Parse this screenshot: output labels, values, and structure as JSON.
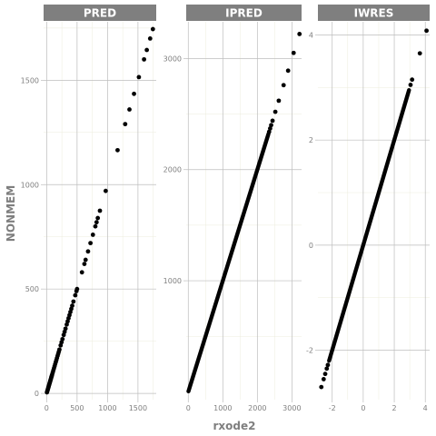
{
  "chart_data": {
    "type": "scatter",
    "xlabel": "rxode2",
    "ylabel": "NONMEM",
    "grid": true,
    "panels": [
      {
        "name": "PRED",
        "xlim": [
          -50,
          1800
        ],
        "ylim": [
          -30,
          1780
        ],
        "x_ticks": [
          0,
          500,
          1000,
          1500
        ],
        "x_tick_labels": [
          "0",
          "500",
          "1000",
          "1500"
        ],
        "y_ticks": [
          0,
          500,
          1000,
          1500
        ],
        "y_tick_labels": [
          "0",
          "500",
          "1000",
          "1500"
        ],
        "points": [
          [
            5,
            5
          ],
          [
            10,
            10
          ],
          [
            15,
            15
          ],
          [
            20,
            20
          ],
          [
            25,
            25
          ],
          [
            30,
            30
          ],
          [
            35,
            35
          ],
          [
            40,
            40
          ],
          [
            45,
            45
          ],
          [
            50,
            50
          ],
          [
            55,
            55
          ],
          [
            60,
            60
          ],
          [
            65,
            65
          ],
          [
            70,
            70
          ],
          [
            75,
            75
          ],
          [
            80,
            80
          ],
          [
            85,
            85
          ],
          [
            90,
            90
          ],
          [
            100,
            100
          ],
          [
            110,
            110
          ],
          [
            120,
            120
          ],
          [
            130,
            130
          ],
          [
            140,
            140
          ],
          [
            150,
            150
          ],
          [
            160,
            160
          ],
          [
            170,
            170
          ],
          [
            180,
            180
          ],
          [
            190,
            190
          ],
          [
            200,
            200
          ],
          [
            210,
            210
          ],
          [
            230,
            230
          ],
          [
            245,
            245
          ],
          [
            260,
            260
          ],
          [
            280,
            280
          ],
          [
            295,
            295
          ],
          [
            310,
            310
          ],
          [
            330,
            330
          ],
          [
            345,
            345
          ],
          [
            360,
            360
          ],
          [
            375,
            375
          ],
          [
            390,
            390
          ],
          [
            405,
            405
          ],
          [
            420,
            420
          ],
          [
            440,
            440
          ],
          [
            470,
            470
          ],
          [
            490,
            490
          ],
          [
            500,
            500
          ],
          [
            580,
            580
          ],
          [
            620,
            620
          ],
          [
            640,
            640
          ],
          [
            680,
            680
          ],
          [
            720,
            720
          ],
          [
            760,
            760
          ],
          [
            800,
            800
          ],
          [
            820,
            820
          ],
          [
            840,
            840
          ],
          [
            875,
            875
          ],
          [
            970,
            970
          ],
          [
            1165,
            1165
          ],
          [
            1290,
            1290
          ],
          [
            1360,
            1360
          ],
          [
            1435,
            1435
          ],
          [
            1515,
            1515
          ],
          [
            1600,
            1600
          ],
          [
            1645,
            1645
          ],
          [
            1700,
            1700
          ],
          [
            1745,
            1745
          ]
        ]
      },
      {
        "name": "IPRED",
        "xlim": [
          -60,
          3280
        ],
        "ylim": [
          -70,
          3330
        ],
        "x_ticks": [
          0,
          1000,
          2000,
          3000
        ],
        "x_tick_labels": [
          "0",
          "1000",
          "2000",
          "3000"
        ],
        "y_ticks": [
          1000,
          2000,
          3000
        ],
        "y_tick_labels": [
          "1000",
          "2000",
          "3000"
        ],
        "dense_segment": [
          5,
          2320
        ],
        "points": [
          [
            2340,
            2340
          ],
          [
            2370,
            2370
          ],
          [
            2400,
            2400
          ],
          [
            2440,
            2440
          ],
          [
            2520,
            2520
          ],
          [
            2620,
            2620
          ],
          [
            2760,
            2760
          ],
          [
            2890,
            2890
          ],
          [
            3050,
            3050
          ],
          [
            3220,
            3220
          ]
        ]
      },
      {
        "name": "IWRES",
        "xlim": [
          -2.92,
          4.28
        ],
        "ylim": [
          -2.94,
          4.25
        ],
        "x_ticks": [
          -2,
          0,
          2,
          4
        ],
        "x_tick_labels": [
          "-2",
          "0",
          "2",
          "4"
        ],
        "y_ticks": [
          -2,
          0,
          2,
          4
        ],
        "y_tick_labels": [
          "-2",
          "0",
          "2",
          "4"
        ],
        "dense_segment": [
          -2.2,
          2.95
        ],
        "points": [
          [
            -2.7,
            -2.7
          ],
          [
            -2.55,
            -2.55
          ],
          [
            -2.45,
            -2.45
          ],
          [
            -2.35,
            -2.35
          ],
          [
            -2.28,
            -2.28
          ],
          [
            3.05,
            3.05
          ],
          [
            3.15,
            3.15
          ],
          [
            3.65,
            3.65
          ],
          [
            4.08,
            4.08
          ]
        ]
      }
    ]
  }
}
